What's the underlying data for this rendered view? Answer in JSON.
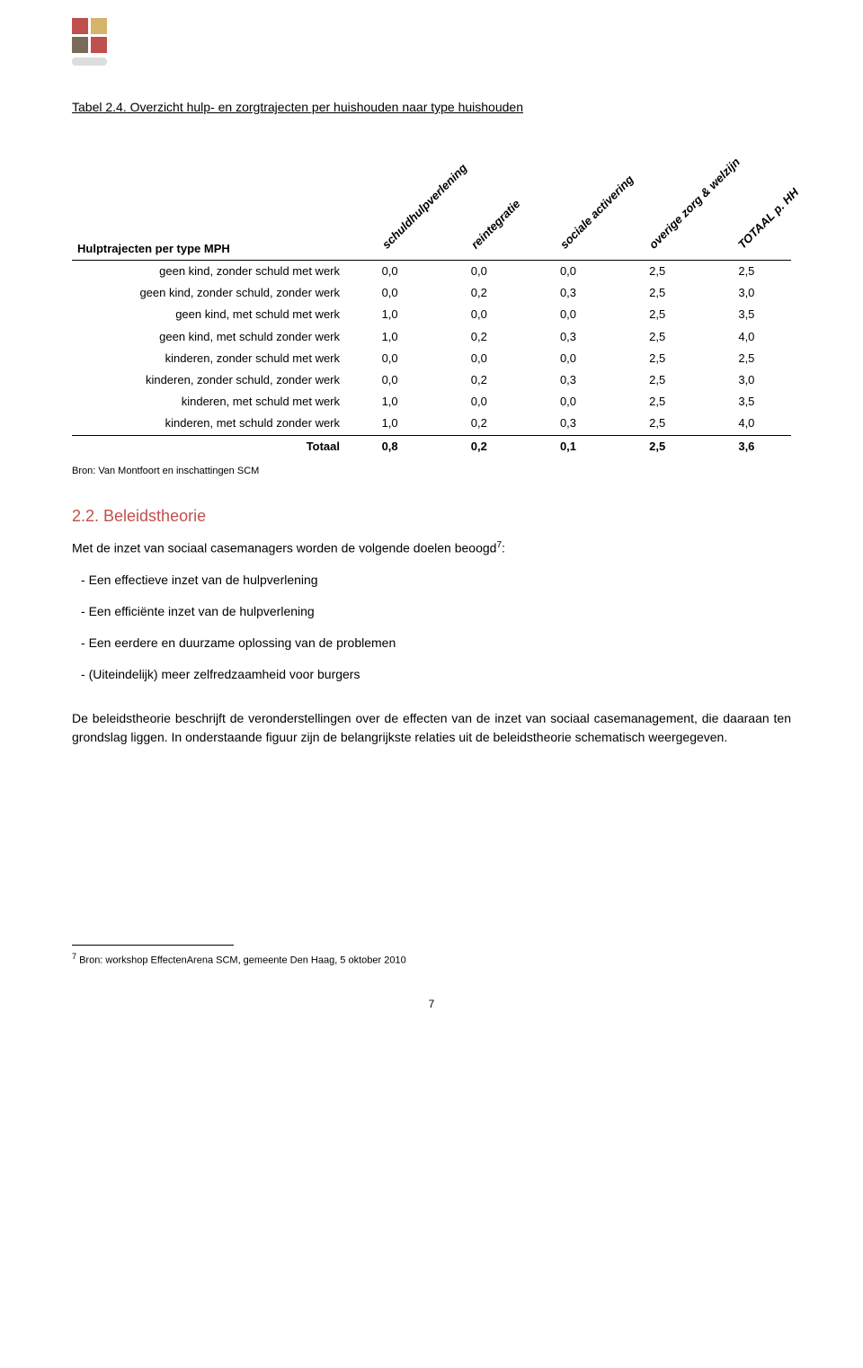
{
  "logo": {
    "colors": [
      "#c0504d",
      "#d8b36a",
      "#7a6a5a",
      "#c0504d"
    ],
    "shadow_color": "#dddddd",
    "square_size": 18,
    "gap": 3
  },
  "table_title": "Tabel 2.4. Overzicht hulp- en zorgtrajecten per huishouden naar type huishouden",
  "table": {
    "row_header": "Hulptrajecten per type MPH",
    "columns": [
      "schuldhulpverlening",
      "reintegratie",
      "sociale activering",
      "overige zorg & welzijn",
      "TOTAAL p. HH"
    ],
    "rows": [
      {
        "label": "geen kind, zonder schuld met werk",
        "values": [
          "0,0",
          "0,0",
          "0,0",
          "2,5",
          "2,5"
        ]
      },
      {
        "label": "geen kind, zonder schuld, zonder werk",
        "values": [
          "0,0",
          "0,2",
          "0,3",
          "2,5",
          "3,0"
        ]
      },
      {
        "label": "geen kind, met schuld met werk",
        "values": [
          "1,0",
          "0,0",
          "0,0",
          "2,5",
          "3,5"
        ]
      },
      {
        "label": "geen kind, met schuld zonder werk",
        "values": [
          "1,0",
          "0,2",
          "0,3",
          "2,5",
          "4,0"
        ]
      },
      {
        "label": "kinderen, zonder schuld met werk",
        "values": [
          "0,0",
          "0,0",
          "0,0",
          "2,5",
          "2,5"
        ]
      },
      {
        "label": "kinderen, zonder schuld, zonder werk",
        "values": [
          "0,0",
          "0,2",
          "0,3",
          "2,5",
          "3,0"
        ]
      },
      {
        "label": "kinderen, met schuld met werk",
        "values": [
          "1,0",
          "0,0",
          "0,0",
          "2,5",
          "3,5"
        ]
      },
      {
        "label": "kinderen, met schuld zonder werk",
        "values": [
          "1,0",
          "0,2",
          "0,3",
          "2,5",
          "4,0"
        ]
      }
    ],
    "total": {
      "label": "Totaal",
      "values": [
        "0,8",
        "0,2",
        "0,1",
        "2,5",
        "3,6"
      ]
    }
  },
  "source_line": "Bron: Van Montfoort en inschattingen SCM",
  "section": {
    "heading": "2.2. Beleidstheorie",
    "intro_pre": "Met de inzet van sociaal casemanagers worden de volgende doelen beoogd",
    "intro_sup": "7",
    "intro_post": ":",
    "bullets": [
      "Een effectieve inzet van de hulpverlening",
      "Een efficiënte inzet van de hulpverlening",
      "Een eerdere en duurzame oplossing van de problemen",
      "(Uiteindelijk) meer zelfredzaamheid voor burgers"
    ],
    "para2": "De beleidstheorie beschrijft de veronderstellingen over de effecten van de inzet van sociaal casemanagement, die daaraan ten grondslag liggen. In onderstaande figuur zijn de belangrijkste relaties uit de beleidstheorie schematisch weergegeven."
  },
  "footnote": {
    "num": "7",
    "text": " Bron: workshop EffectenArena SCM, gemeente Den Haag, 5 oktober 2010"
  },
  "page_number": "7"
}
